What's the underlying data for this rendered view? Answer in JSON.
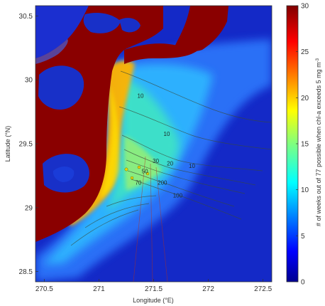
{
  "chart_data": {
    "type": "heatmap",
    "title": "",
    "xlabel": "Longitude (°E)",
    "ylabel": "Latitude (°N)",
    "colorbar_label": "# of weeks out of 77 possible when chl-a exceeds 5 mg m",
    "colorbar_label_sup": "-3",
    "xlim": [
      270.42,
      272.58
    ],
    "ylim": [
      28.42,
      30.58
    ],
    "x_ticks": [
      "270.5",
      "271",
      "271.5",
      "272",
      "272.5"
    ],
    "x_tick_values": [
      270.5,
      271.0,
      271.5,
      272.0,
      272.5
    ],
    "y_ticks": [
      "30.5",
      "30",
      "29.5",
      "29",
      "28.5"
    ],
    "y_tick_values": [
      30.5,
      30.0,
      29.5,
      29.0,
      28.5
    ],
    "colorbar_range": [
      0,
      30
    ],
    "colorbar_ticks": [
      "30",
      "25",
      "20",
      "15",
      "10",
      "5",
      "0"
    ],
    "colorbar_tick_values": [
      30,
      25,
      20,
      15,
      10,
      5,
      0
    ],
    "colormap": "jet",
    "contour_labels": [
      {
        "text": "10",
        "lon": 271.62,
        "lat": 29.56
      },
      {
        "text": "10",
        "lon": 271.38,
        "lat": 29.86
      },
      {
        "text": "30",
        "lon": 271.52,
        "lat": 29.35
      },
      {
        "text": "20",
        "lon": 271.65,
        "lat": 29.33
      },
      {
        "text": "50",
        "lon": 271.42,
        "lat": 29.27
      },
      {
        "text": "70",
        "lon": 271.36,
        "lat": 29.18
      },
      {
        "text": "10",
        "lon": 271.85,
        "lat": 29.31
      },
      {
        "text": "200",
        "lon": 271.58,
        "lat": 29.18
      },
      {
        "text": "100",
        "lon": 271.72,
        "lat": 29.08
      }
    ]
  }
}
